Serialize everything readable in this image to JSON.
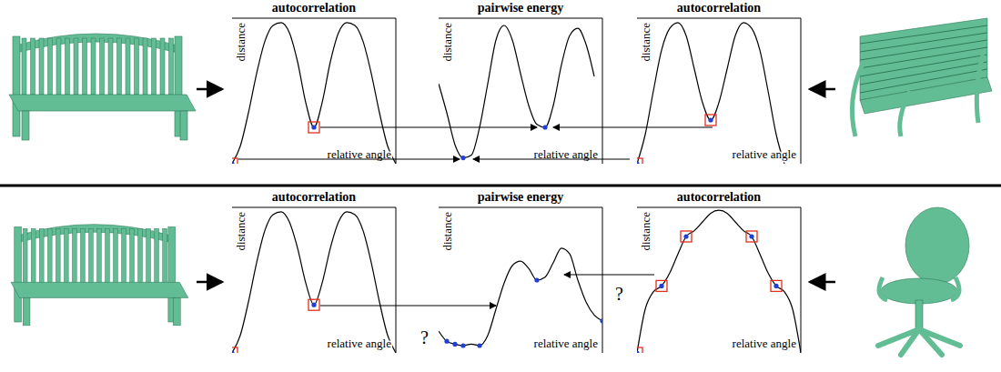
{
  "chart_data": [
    {
      "type": "line",
      "title": "autocorrelation",
      "x_label": "relative angle",
      "y_label": "distance",
      "color": "#000000",
      "tick_labels": false,
      "xlim": [
        0,
        1
      ],
      "ylim": [
        0,
        1
      ],
      "x": [
        0,
        0.05,
        0.1,
        0.15,
        0.2,
        0.25,
        0.3,
        0.35,
        0.4,
        0.45,
        0.5,
        0.55,
        0.6,
        0.65,
        0.7,
        0.75,
        0.8,
        0.85,
        0.9,
        0.95,
        1.0
      ],
      "values": [
        0,
        0.12,
        0.35,
        0.62,
        0.84,
        0.95,
        0.97,
        0.9,
        0.7,
        0.42,
        0.25,
        0.42,
        0.7,
        0.9,
        0.97,
        0.95,
        0.84,
        0.62,
        0.35,
        0.12,
        0
      ],
      "points": {
        "x": [
          0,
          0.5
        ],
        "values": [
          0,
          0.25
        ],
        "marker": "square"
      }
    },
    {
      "type": "line",
      "title": "pairwise energy",
      "x_label": "relative angle",
      "y_label": "distance",
      "color": "#000000",
      "tick_labels": false,
      "xlim": [
        0,
        1
      ],
      "ylim": [
        0,
        1
      ],
      "x": [
        0,
        0.05,
        0.1,
        0.15,
        0.2,
        0.25,
        0.3,
        0.35,
        0.4,
        0.45,
        0.5,
        0.55,
        0.6,
        0.65,
        0.7,
        0.75,
        0.8,
        0.85,
        0.9,
        0.95
      ],
      "values": [
        0.55,
        0.35,
        0.13,
        0.04,
        0.06,
        0.25,
        0.55,
        0.85,
        0.95,
        0.85,
        0.62,
        0.4,
        0.27,
        0.25,
        0.4,
        0.68,
        0.88,
        0.93,
        0.82,
        0.6
      ],
      "points": {
        "x": [
          0.15,
          0.65
        ],
        "values": [
          0.04,
          0.25
        ],
        "marker": "dot"
      }
    },
    {
      "type": "line",
      "title": "autocorrelation",
      "x_label": "relative angle",
      "y_label": "distance",
      "color": "#000000",
      "tick_labels": false,
      "xlim": [
        0,
        1
      ],
      "ylim": [
        0,
        1
      ],
      "x": [
        0,
        0.05,
        0.1,
        0.15,
        0.2,
        0.25,
        0.3,
        0.35,
        0.4,
        0.45,
        0.5,
        0.55,
        0.6,
        0.65,
        0.7,
        0.75,
        0.8,
        0.85,
        0.9
      ],
      "values": [
        0,
        0.2,
        0.5,
        0.78,
        0.93,
        0.97,
        0.88,
        0.65,
        0.42,
        0.3,
        0.42,
        0.65,
        0.88,
        0.97,
        0.93,
        0.78,
        0.5,
        0.2,
        0
      ],
      "points": {
        "x": [
          0,
          0.45
        ],
        "values": [
          0,
          0.3
        ],
        "marker": "square"
      }
    },
    {
      "type": "line",
      "title": "autocorrelation",
      "x_label": "relative angle",
      "y_label": "distance",
      "color": "#000000",
      "tick_labels": false,
      "xlim": [
        0,
        1
      ],
      "ylim": [
        0,
        1
      ],
      "x": [
        0,
        0.05,
        0.1,
        0.15,
        0.2,
        0.25,
        0.3,
        0.35,
        0.4,
        0.45,
        0.5,
        0.55,
        0.6,
        0.65,
        0.7,
        0.75,
        0.8,
        0.85,
        0.9,
        0.95,
        1.0
      ],
      "values": [
        0,
        0.12,
        0.35,
        0.62,
        0.84,
        0.95,
        0.97,
        0.9,
        0.72,
        0.48,
        0.33,
        0.48,
        0.72,
        0.9,
        0.97,
        0.95,
        0.84,
        0.62,
        0.35,
        0.12,
        0
      ],
      "points": {
        "x": [
          0,
          0.5
        ],
        "values": [
          0,
          0.33
        ],
        "marker": "square"
      }
    },
    {
      "type": "line",
      "title": "pairwise energy",
      "x_label": "relative angle",
      "y_label": "distance",
      "color": "#000000",
      "tick_labels": false,
      "xlim": [
        0,
        1
      ],
      "ylim": [
        0,
        1
      ],
      "x": [
        0,
        0.05,
        0.1,
        0.15,
        0.2,
        0.25,
        0.3,
        0.35,
        0.4,
        0.45,
        0.5,
        0.55,
        0.6,
        0.65,
        0.7,
        0.75,
        0.8,
        0.85,
        0.9,
        0.95,
        1.0
      ],
      "values": [
        0.15,
        0.08,
        0.06,
        0.05,
        0.06,
        0.05,
        0.12,
        0.3,
        0.48,
        0.6,
        0.63,
        0.58,
        0.5,
        0.52,
        0.62,
        0.72,
        0.68,
        0.5,
        0.35,
        0.26,
        0.22
      ],
      "points": {
        "x": [
          0.05,
          0.1,
          0.15,
          0.25,
          0.6,
          1.0
        ],
        "values": [
          0.08,
          0.06,
          0.05,
          0.05,
          0.5,
          0.22
        ],
        "marker": "dot"
      },
      "annotations": [
        "?",
        "?"
      ]
    },
    {
      "type": "line",
      "title": "autocorrelation",
      "x_label": "relative angle",
      "y_label": "distance",
      "color": "#000000",
      "tick_labels": false,
      "xlim": [
        0,
        1
      ],
      "ylim": [
        0,
        1
      ],
      "x": [
        0,
        0.05,
        0.1,
        0.15,
        0.2,
        0.25,
        0.3,
        0.35,
        0.4,
        0.45,
        0.5,
        0.55,
        0.6,
        0.65,
        0.7,
        0.75,
        0.8,
        0.85,
        0.9,
        0.95,
        1.0
      ],
      "values": [
        0,
        0.3,
        0.42,
        0.46,
        0.55,
        0.68,
        0.8,
        0.84,
        0.9,
        0.96,
        0.98,
        0.96,
        0.9,
        0.84,
        0.8,
        0.68,
        0.55,
        0.46,
        0.42,
        0.3,
        0
      ],
      "points": {
        "x": [
          0,
          0.15,
          0.3,
          0.7,
          0.85
        ],
        "values": [
          0,
          0.46,
          0.8,
          0.8,
          0.46
        ],
        "marker": "square"
      }
    }
  ]
}
